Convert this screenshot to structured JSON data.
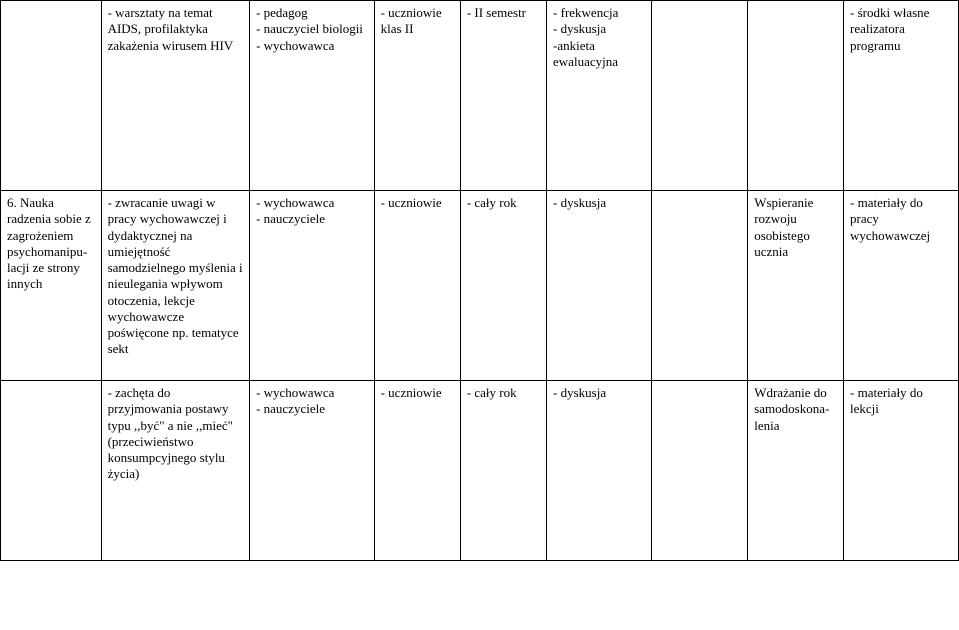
{
  "columns": {
    "widths_pct": [
      10.5,
      15.5,
      13,
      9,
      9,
      11,
      10,
      10,
      12
    ]
  },
  "rows": [
    {
      "c0": "",
      "c1": "- warsztaty na temat AIDS, profilaktyka zakażenia wirusem HIV",
      "c2": "- pedagog\n- nauczyciel biologii\n- wychowawca",
      "c3": "- uczniowie klas II",
      "c4": "- II semestr",
      "c5": "- frekwencja\n- dyskusja\n-ankieta ewaluacyjna",
      "c6": "",
      "c7": "",
      "c8": "- środki własne realizatora programu"
    },
    {
      "c0": "6. Nauka radzenia sobie z zagrożeniem psychomanipu-lacji ze strony innych",
      "c1": "- zwracanie uwagi w pracy wychowawczej i dydaktycznej na umiejętność samodzielnego myślenia i nieulegania wpływom otoczenia, lekcje wychowawcze poświęcone np. tematyce sekt",
      "c2": "- wychowawca\n- nauczyciele",
      "c3": "- uczniowie",
      "c4": "- cały rok",
      "c5": "- dyskusja",
      "c6": "",
      "c7": "Wspieranie rozwoju osobistego ucznia",
      "c8": "- materiały do pracy wychowawczej"
    },
    {
      "c0": "",
      "c1": "- zachęta do przyjmowania postawy typu ,,być\" a nie ,,mieć\" (przeciwieństwo konsumpcyjnego stylu życia)",
      "c2": "- wychowawca\n- nauczyciele",
      "c3": "- uczniowie",
      "c4": "- cały rok",
      "c5": "- dyskusja",
      "c6": "",
      "c7": "Wdrażanie do samodoskona-lenia",
      "c8": "- materiały do lekcji"
    }
  ]
}
